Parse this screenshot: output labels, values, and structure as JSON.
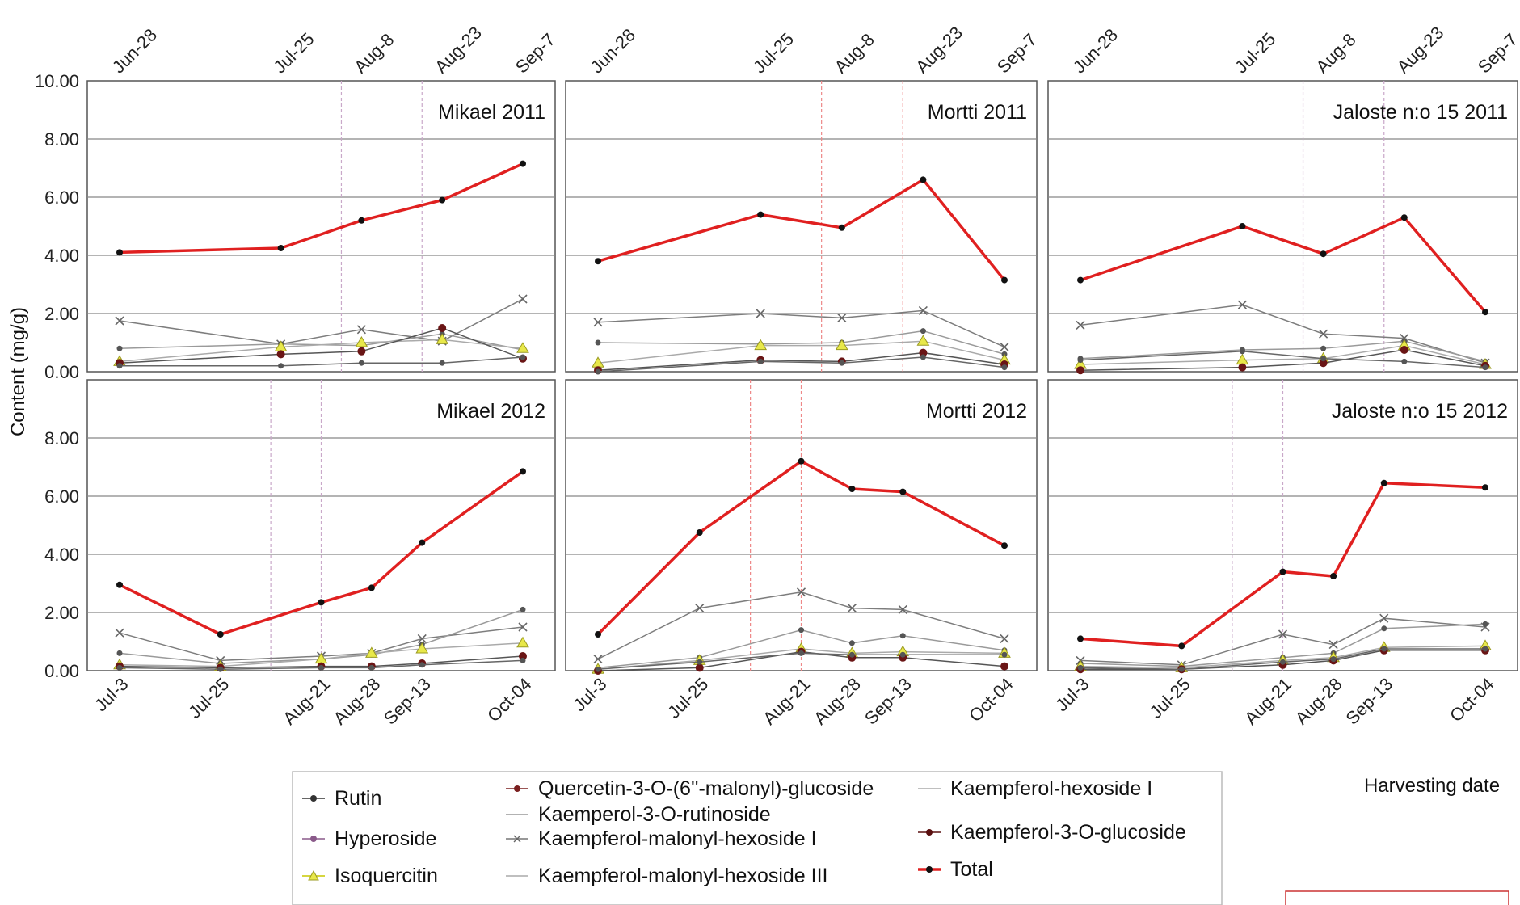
{
  "chart_data": {
    "type": "line",
    "ylabel": "Content (mg/g)",
    "xlabel": "Harvesting date",
    "ylim": [
      0,
      10
    ],
    "yticks_top": [
      "10.00",
      "8.00",
      "6.00",
      "4.00",
      "2.00",
      "0.00"
    ],
    "yticks_bottom": [
      "8.00",
      "6.00",
      "4.00",
      "2.00",
      "0.00"
    ],
    "top_dates": [
      "Jun-28",
      "Jul-25",
      "Aug-8",
      "Aug-23",
      "Sep-7"
    ],
    "bottom_dates": [
      "Jul-3",
      "Jul-25",
      "Aug-21",
      "Aug-28",
      "Sep-13",
      "Oct-04"
    ],
    "legend": [
      {
        "label": "Rutin",
        "color": "#333333",
        "marker": "dot"
      },
      {
        "label": "Hyperoside",
        "color": "#8a5a8a",
        "marker": "square"
      },
      {
        "label": "Isoquercitin",
        "color": "#c8c800",
        "marker": "triangle"
      },
      {
        "label": "Quercetin-3-O-(6''-malonyl)-glucoside",
        "color": "#7a1f1f",
        "marker": "dot"
      },
      {
        "label": "Kaemperol-3-O-rutinoside",
        "color": "#999999",
        "marker": "none"
      },
      {
        "label": "Kaempferol-malonyl-hexoside I",
        "color": "#777777",
        "marker": "x"
      },
      {
        "label": "Kaempferol-malonyl-hexoside III",
        "color": "#aaaaaa",
        "marker": "dash"
      },
      {
        "label": "Kaempferol-hexoside I",
        "color": "#aaaaaa",
        "marker": "dash"
      },
      {
        "label": "Kaempferol-3-O-glucoside",
        "color": "#5a1010",
        "marker": "diamond"
      },
      {
        "label": "Total",
        "color": "#e02020",
        "marker": "dot"
      }
    ],
    "panels": [
      {
        "title": "Mikael 2011",
        "row": 0,
        "col": 0,
        "x": [
          0,
          4,
          6,
          8,
          10
        ],
        "total": [
          4.1,
          4.25,
          5.2,
          5.9,
          7.15
        ],
        "minor": [
          [
            1.75,
            0.95,
            1.45,
            1.05,
            2.5
          ],
          [
            0.8,
            0.95,
            0.9,
            1.3,
            0.75
          ],
          [
            0.35,
            0.85,
            1.0,
            1.1,
            0.8
          ],
          [
            0.3,
            0.6,
            0.7,
            1.5,
            0.45
          ],
          [
            0.2,
            0.2,
            0.3,
            0.3,
            0.5
          ]
        ]
      },
      {
        "title": "Mortti 2011",
        "row": 0,
        "col": 1,
        "x": [
          0,
          4,
          6,
          8,
          10
        ],
        "total": [
          3.8,
          5.4,
          4.95,
          6.6,
          3.15
        ],
        "minor": [
          [
            1.7,
            2.0,
            1.85,
            2.1,
            0.85
          ],
          [
            1.0,
            0.95,
            1.0,
            1.4,
            0.6
          ],
          [
            0.3,
            0.9,
            0.9,
            1.05,
            0.4
          ],
          [
            0.05,
            0.4,
            0.35,
            0.65,
            0.25
          ],
          [
            0.0,
            0.35,
            0.3,
            0.5,
            0.15
          ]
        ]
      },
      {
        "title": "Jaloste n:o 15 2011",
        "row": 0,
        "col": 2,
        "x": [
          0,
          4,
          6,
          8,
          10
        ],
        "total": [
          3.15,
          5.0,
          4.05,
          5.3,
          2.05
        ],
        "minor": [
          [
            1.6,
            2.3,
            1.3,
            1.15,
            0.3
          ],
          [
            0.45,
            0.75,
            0.8,
            1.05,
            0.35
          ],
          [
            0.25,
            0.4,
            0.45,
            0.9,
            0.25
          ],
          [
            0.05,
            0.15,
            0.3,
            0.75,
            0.2
          ],
          [
            0.4,
            0.7,
            0.45,
            0.35,
            0.15
          ]
        ]
      },
      {
        "title": "Mikael 2012",
        "row": 1,
        "col": 0,
        "x": [
          0,
          4,
          8,
          10,
          12,
          16
        ],
        "total": [
          2.95,
          1.25,
          2.35,
          2.85,
          4.4,
          6.85
        ],
        "minor": [
          [
            1.3,
            0.35,
            0.5,
            0.6,
            1.1,
            1.5
          ],
          [
            0.6,
            0.25,
            0.4,
            0.55,
            0.9,
            2.1
          ],
          [
            0.2,
            0.15,
            0.4,
            0.6,
            0.75,
            0.95
          ],
          [
            0.15,
            0.1,
            0.15,
            0.15,
            0.25,
            0.5
          ],
          [
            0.1,
            0.05,
            0.1,
            0.1,
            0.2,
            0.35
          ]
        ]
      },
      {
        "title": "Mortti 2012",
        "row": 1,
        "col": 1,
        "x": [
          0,
          4,
          8,
          10,
          12,
          16
        ],
        "total": [
          1.25,
          4.75,
          7.2,
          6.25,
          6.15,
          4.3
        ],
        "minor": [
          [
            0.4,
            2.15,
            2.7,
            2.15,
            2.1,
            1.1
          ],
          [
            0.1,
            0.45,
            1.4,
            0.95,
            1.2,
            0.7
          ],
          [
            0.05,
            0.35,
            0.75,
            0.6,
            0.65,
            0.6
          ],
          [
            0.0,
            0.1,
            0.65,
            0.45,
            0.45,
            0.15
          ],
          [
            0.05,
            0.3,
            0.6,
            0.55,
            0.55,
            0.55
          ]
        ]
      },
      {
        "title": "Jaloste n:o 15 2012",
        "row": 1,
        "col": 2,
        "x": [
          0,
          4,
          8,
          10,
          12,
          16
        ],
        "total": [
          1.1,
          0.85,
          3.4,
          3.25,
          6.45,
          6.3
        ],
        "minor": [
          [
            0.35,
            0.2,
            1.25,
            0.9,
            1.8,
            1.5
          ],
          [
            0.25,
            0.15,
            0.45,
            0.6,
            1.45,
            1.6
          ],
          [
            0.15,
            0.1,
            0.35,
            0.45,
            0.8,
            0.85
          ],
          [
            0.05,
            0.05,
            0.2,
            0.35,
            0.7,
            0.7
          ],
          [
            0.1,
            0.05,
            0.3,
            0.4,
            0.75,
            0.75
          ]
        ]
      }
    ]
  }
}
